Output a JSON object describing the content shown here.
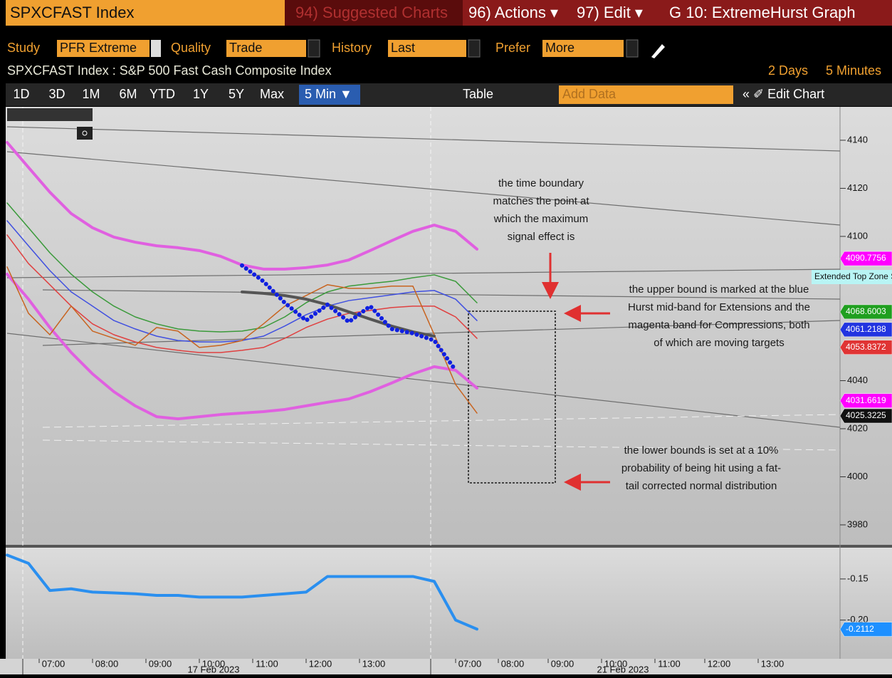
{
  "header": {
    "title": "SPXCFAST Index",
    "suggested": "94) Suggested Charts",
    "actions": "96) Actions ▾",
    "edit": "97) Edit ▾",
    "graph": "G 10: ExtremeHurst Graph"
  },
  "study_bar": {
    "study_label": "Study",
    "study": "PFR Extreme",
    "quality_label": "Quality",
    "quality": "Trade",
    "history_label": "History",
    "history": "Last",
    "prefer_label": "Prefer",
    "prefer": "More"
  },
  "info": {
    "security": "SPXCFAST Index : S&P 500 Fast Cash Composite Index",
    "range": "2 Days",
    "interval": "5 Minutes"
  },
  "toolbar": {
    "periods": [
      "1D",
      "3D",
      "1M",
      "6M",
      "YTD",
      "1Y",
      "5Y",
      "Max"
    ],
    "interval": "5 Min ▼",
    "table": "Table",
    "add_data": "Add Data",
    "edit_chart": "« ✐ Edit Chart"
  },
  "time_axis": {
    "labels": [
      "07:00",
      "08:00",
      "09:00",
      "10:00",
      "11:00",
      "12:00",
      "13:00",
      "07:00",
      "08:00",
      "09:00",
      "10:00",
      "11:00",
      "12:00",
      "13:00"
    ],
    "dates": [
      "17 Feb 2023",
      "21 Feb 2023"
    ]
  },
  "annotations": [
    {
      "lines": [
        "the time boundary",
        "matches the point at",
        "which the maximum",
        "signal effect is"
      ]
    },
    {
      "lines": [
        "the upper bound is marked at the blue",
        "Hurst mid-band for Extensions and the",
        "magenta band for Compressions, both",
        "of which are moving targets"
      ]
    },
    {
      "lines": [
        "the lower bounds is set at a 10%",
        "probability of being hit using a fat-",
        "tail corrected normal distribution"
      ]
    }
  ],
  "chart_data": [
    {
      "type": "line",
      "ylim": [
        3971.7,
        4153.9
      ],
      "yticks": [
        3980,
        4000,
        4020,
        4040,
        4100,
        4120,
        4140
      ],
      "callout": "Extended Top Zone Start (SPX",
      "price_tags": [
        4090.7756,
        4068.6003,
        4061.2188,
        4053.8372,
        4031.6619,
        4025.3225
      ],
      "price_tag_colors": [
        "#ff00ff",
        "#1f9f1f",
        "#2234e0",
        "#e03434",
        "#ff00ff",
        "#111111"
      ],
      "series": [
        {
          "color": "#e060e0",
          "width": 4,
          "values": [
            4139.1,
            4128.7,
            4118.4,
            4109.5,
            4103.6,
            4099.7,
            4097.6,
            4096.1,
            4095.3,
            4094.1,
            4091.7,
            4088.1,
            4086.4,
            4086.4,
            4087.0,
            4088.1,
            4090.2,
            4094.1,
            4098.2,
            4102.1,
            4104.7,
            4102.1,
            4094.7,
            null
          ]
        },
        {
          "color": "#e060e0",
          "width": 4,
          "values": [
            4084.3,
            4073.9,
            4062.1,
            4051.7,
            4042.8,
            4035.4,
            4029.5,
            4025.0,
            4024.1,
            4025.0,
            4025.9,
            4026.5,
            4027.1,
            4028.0,
            4029.5,
            4031.0,
            4032.4,
            4035.4,
            4039.0,
            4042.8,
            4045.8,
            4044.3,
            4036.9,
            null
          ]
        },
        {
          "color": "#3a9a3a",
          "width": 1.5,
          "values": [
            4113.9,
            4103.6,
            4093.2,
            4084.3,
            4076.9,
            4071.0,
            4066.5,
            4063.6,
            4061.5,
            4060.6,
            4060.3,
            4060.6,
            4062.1,
            4066.5,
            4072.4,
            4076.9,
            4079.3,
            4080.4,
            4081.3,
            4082.8,
            4084.0,
            4081.3,
            4072.4,
            null
          ]
        },
        {
          "color": "#4050e0",
          "width": 1.5,
          "values": [
            4106.5,
            4096.1,
            4085.8,
            4076.9,
            4071.0,
            4065.0,
            4061.5,
            4058.5,
            4056.7,
            4056.1,
            4056.1,
            4056.7,
            4058.5,
            4062.7,
            4067.4,
            4071.0,
            4073.3,
            4074.5,
            4075.7,
            4076.9,
            4077.5,
            4073.9,
            4065.0,
            null
          ]
        },
        {
          "color": "#e04040",
          "width": 1.5,
          "values": [
            4100.6,
            4088.7,
            4079.9,
            4071.0,
            4063.6,
            4059.1,
            4056.1,
            4053.8,
            4052.6,
            4051.7,
            4051.7,
            4052.6,
            4053.8,
            4057.6,
            4062.1,
            4065.6,
            4068.0,
            4069.2,
            4070.4,
            4071.0,
            4071.0,
            4066.5,
            4057.6,
            null
          ]
        },
        {
          "color": "#c86420",
          "width": 1.5,
          "values": [
            4087.3,
            4068.0,
            4059.1,
            4071.0,
            4060.6,
            4057.6,
            4054.7,
            4062.1,
            4060.6,
            4053.8,
            4054.7,
            4056.7,
            4063.6,
            4071.0,
            4075.4,
            4079.9,
            4078.4,
            4078.4,
            4079.3,
            4079.3,
            4059.1,
            4038.4,
            4026.5,
            null
          ]
        },
        {
          "color": "#555555",
          "width": 4,
          "values": [
            null,
            null,
            null,
            null,
            null,
            null,
            null,
            null,
            null,
            null,
            null,
            4076.9,
            4076.3,
            4075.4,
            4073.9,
            4071.6,
            4068.6,
            4065.6,
            4062.7,
            4060.3,
            4058.5,
            null,
            null,
            null
          ]
        },
        {
          "color": "#1020e0",
          "width": 6,
          "values": [
            null,
            null,
            null,
            null,
            null,
            null,
            null,
            null,
            null,
            null,
            null,
            4087.9,
            4081.3,
            4072.4,
            4065.0,
            4071.6,
            4064.4,
            4071.0,
            4061.5,
            4059.7,
            4056.7,
            4044.3,
            null,
            null
          ]
        }
      ]
    },
    {
      "type": "line",
      "ylim": [
        -0.247,
        -0.112
      ],
      "yticks": [
        -0.15,
        {
          "value": -0.2,
          "label": "-0.20"
        }
      ],
      "price_tags": [
        -0.2112
      ],
      "price_tag_colors": [
        "#1e90ff"
      ],
      "series": [
        {
          "color": "#2a8fef",
          "width": 4,
          "values": [
            -0.121,
            -0.131,
            -0.164,
            -0.162,
            -0.166,
            -0.167,
            -0.168,
            -0.17,
            -0.17,
            -0.172,
            -0.172,
            -0.172,
            -0.17,
            -0.168,
            -0.166,
            -0.147,
            -0.147,
            -0.147,
            -0.147,
            -0.147,
            -0.153,
            -0.2,
            -0.211,
            null
          ]
        }
      ]
    }
  ]
}
